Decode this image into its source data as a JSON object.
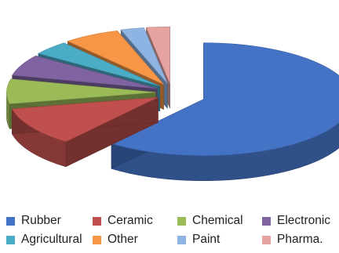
{
  "chart_data": {
    "type": "pie",
    "style": "3d-exploded",
    "title": "",
    "unit": "%",
    "categories": [
      "Rubber",
      "Ceramic",
      "Chemical",
      "Electronic",
      "Agricultural",
      "Other",
      "Paint",
      "Pharma."
    ],
    "values": [
      60,
      11,
      7,
      6,
      4,
      6,
      2.5,
      2.5
    ],
    "colors": [
      "#4472c4",
      "#c0504d",
      "#9bbb59",
      "#8064a2",
      "#4bacc6",
      "#f79646",
      "#8eb4e3",
      "#e6a3a1"
    ],
    "legend_position": "bottom",
    "legend": {
      "items": [
        {
          "label": "Rubber",
          "color": "#4472c4"
        },
        {
          "label": "Ceramic",
          "color": "#c0504d"
        },
        {
          "label": "Chemical",
          "color": "#9bbb59"
        },
        {
          "label": "Electronic",
          "color": "#8064a2"
        },
        {
          "label": "Agricultural",
          "color": "#4bacc6"
        },
        {
          "label": "Other",
          "color": "#f79646"
        },
        {
          "label": "Paint",
          "color": "#8eb4e3"
        },
        {
          "label": "Pharma.",
          "color": "#e6a3a1"
        }
      ]
    }
  }
}
